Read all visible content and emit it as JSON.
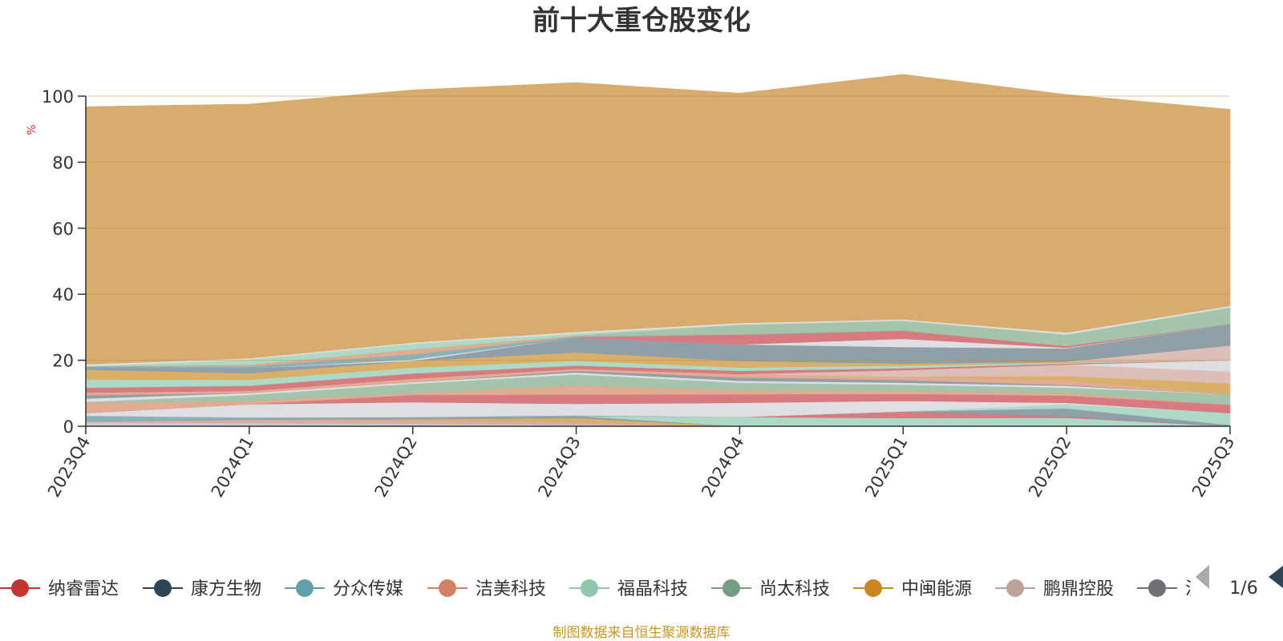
{
  "source_note": "制图数据来自恒生聚源数据库",
  "colors": {
    "source_note": "#c8962a",
    "unit": "#e0322f",
    "axis": "#333333",
    "pager_active": "#2f4554",
    "pager_inactive": "#aaaaaa"
  },
  "legend": {
    "page": "1/6",
    "items": [
      {
        "name": "纳睿雷达",
        "color": "#c23531"
      },
      {
        "name": "康方生物",
        "color": "#2f4554"
      },
      {
        "name": "分众传媒",
        "color": "#61a0a8"
      },
      {
        "name": "洁美科技",
        "color": "#d48265"
      },
      {
        "name": "福晶科技",
        "color": "#91c7ae"
      },
      {
        "name": "尚太科技",
        "color": "#749f83"
      },
      {
        "name": "中闽能源",
        "color": "#ca8622"
      },
      {
        "name": "鹏鼎控股",
        "color": "#bda29a"
      },
      {
        "name": "泸",
        "color": "#6e7074"
      }
    ]
  },
  "chart_data": {
    "type": "area",
    "stacked": true,
    "title": "前十大重仓股变化",
    "ylabel": "%",
    "ylim": [
      0,
      100
    ],
    "yticks": [
      0,
      20,
      40,
      60,
      80,
      100
    ],
    "categories": [
      "2023Q4",
      "2024Q1",
      "2024Q2",
      "2024Q3",
      "2024Q4",
      "2025Q1",
      "2025Q2",
      "2025Q3"
    ],
    "series": [
      {
        "color": "#c4c8cc",
        "values": [
          1.2,
          1.0,
          0.8,
          0.5,
          0,
          0,
          0,
          0
        ]
      },
      {
        "color": "#d9a8a0",
        "values": [
          0.3,
          1.0,
          1.0,
          0.8,
          0,
          0,
          0,
          0
        ]
      },
      {
        "color": "#d8ab5f",
        "values": [
          0,
          0,
          0.4,
          1.2,
          0,
          0,
          0,
          0
        ]
      },
      {
        "color": "#8f9aa1",
        "values": [
          0.2,
          0.2,
          0.4,
          0.6,
          0,
          0,
          0,
          0
        ]
      },
      {
        "color": "#a9d8c4",
        "values": [
          0,
          0,
          0,
          0,
          2.8,
          2.5,
          2.6,
          0
        ]
      },
      {
        "color": "#d6747a",
        "values": [
          0,
          0,
          0,
          0,
          0,
          2.0,
          0.3,
          0
        ]
      },
      {
        "color": "#8a9aa3",
        "values": [
          0,
          0,
          0,
          0,
          0,
          0,
          2.5,
          0.4
        ]
      },
      {
        "color": "#a9d8c4",
        "values": [
          0,
          0,
          0,
          0,
          0,
          0,
          1.2,
          3.6
        ]
      },
      {
        "color": "#7fb0b7",
        "values": [
          1.5,
          0.5,
          0.2,
          0.2,
          0,
          0,
          0,
          0
        ]
      },
      {
        "color": "#dcdde0",
        "values": [
          0.8,
          4.0,
          4.5,
          3.5,
          4.3,
          3.2,
          0.5,
          0
        ]
      },
      {
        "color": "#d6747a",
        "values": [
          0,
          0,
          2.2,
          2.8,
          2.6,
          2.1,
          2.2,
          2.5
        ]
      },
      {
        "color": "#e0a88c",
        "values": [
          3.2,
          1.0,
          0.6,
          2.8,
          1.3,
          1.0,
          0.8,
          0
        ]
      },
      {
        "color": "#9fc1a6",
        "values": [
          0.2,
          1.8,
          2.8,
          3.3,
          2.2,
          1.8,
          1.6,
          3.2
        ]
      },
      {
        "color": "#dcdde0",
        "values": [
          1.0,
          0.6,
          0.5,
          0.6,
          0.6,
          0.6,
          0.6,
          0
        ]
      },
      {
        "color": "#8a9aa3",
        "values": [
          1.0,
          0,
          0,
          0.5,
          1.0,
          0.8,
          0.2,
          0
        ]
      },
      {
        "color": "#e0a88c",
        "values": [
          0.8,
          0.6,
          1.0,
          0.6,
          1.0,
          1.0,
          1.5,
          0
        ]
      },
      {
        "color": "#d8ab5f",
        "values": [
          0,
          0,
          0,
          0,
          0,
          0,
          1.2,
          3.3
        ]
      },
      {
        "color": "#dcbbb5",
        "values": [
          0,
          0,
          0,
          0,
          0,
          2.0,
          3.5,
          3.6
        ]
      },
      {
        "color": "#dcdde0",
        "values": [
          0,
          0,
          0,
          0,
          0,
          0,
          0,
          3.4
        ]
      },
      {
        "color": "#d6747a",
        "values": [
          1.5,
          1.6,
          1.6,
          1.0,
          1.0,
          0.6,
          0.3,
          0
        ]
      },
      {
        "color": "#a9d8c4",
        "values": [
          2.5,
          1.8,
          1.8,
          1.5,
          1.0,
          0.8,
          0.3,
          0
        ]
      },
      {
        "color": "#d8ab5f",
        "values": [
          3.0,
          2.0,
          2.0,
          2.5,
          2.0,
          0.6,
          0.3,
          0
        ]
      },
      {
        "color": "#dcbbb5",
        "values": [
          0,
          0,
          0,
          0,
          0,
          0,
          0,
          4.5
        ]
      },
      {
        "color": "#8a9aa3",
        "values": [
          0.5,
          1.5,
          0,
          4.5,
          5.0,
          5.0,
          4.0,
          6.5
        ]
      },
      {
        "color": "#dcdde0",
        "values": [
          0,
          0,
          0.5,
          0,
          0,
          2.5,
          0.2,
          0
        ]
      },
      {
        "color": "#d6747a",
        "values": [
          0,
          0,
          0,
          0,
          3.0,
          2.5,
          0.5,
          0
        ]
      },
      {
        "color": "#7fb0b7",
        "values": [
          0.5,
          0.6,
          1.5,
          0.3,
          0,
          0,
          0,
          0
        ]
      },
      {
        "color": "#e0a88c",
        "values": [
          0,
          0.5,
          1.5,
          0.3,
          0,
          0,
          0,
          0
        ]
      },
      {
        "color": "#9fc1a6",
        "values": [
          0,
          0,
          0,
          0,
          3.0,
          3.0,
          3.5,
          5.0
        ]
      },
      {
        "color": "#a9d8c4",
        "values": [
          0,
          1.5,
          1.7,
          0.6,
          0,
          0,
          0,
          0
        ]
      },
      {
        "color": "#dcdde0",
        "values": [
          0.6,
          0.4,
          0.4,
          0.5,
          0.5,
          0.4,
          0.6,
          0.5
        ]
      },
      {
        "color": "#d6a864",
        "values": [
          78.0,
          77.0,
          76.5,
          75.5,
          69.6,
          74.2,
          72.1,
          59.5
        ]
      }
    ]
  }
}
